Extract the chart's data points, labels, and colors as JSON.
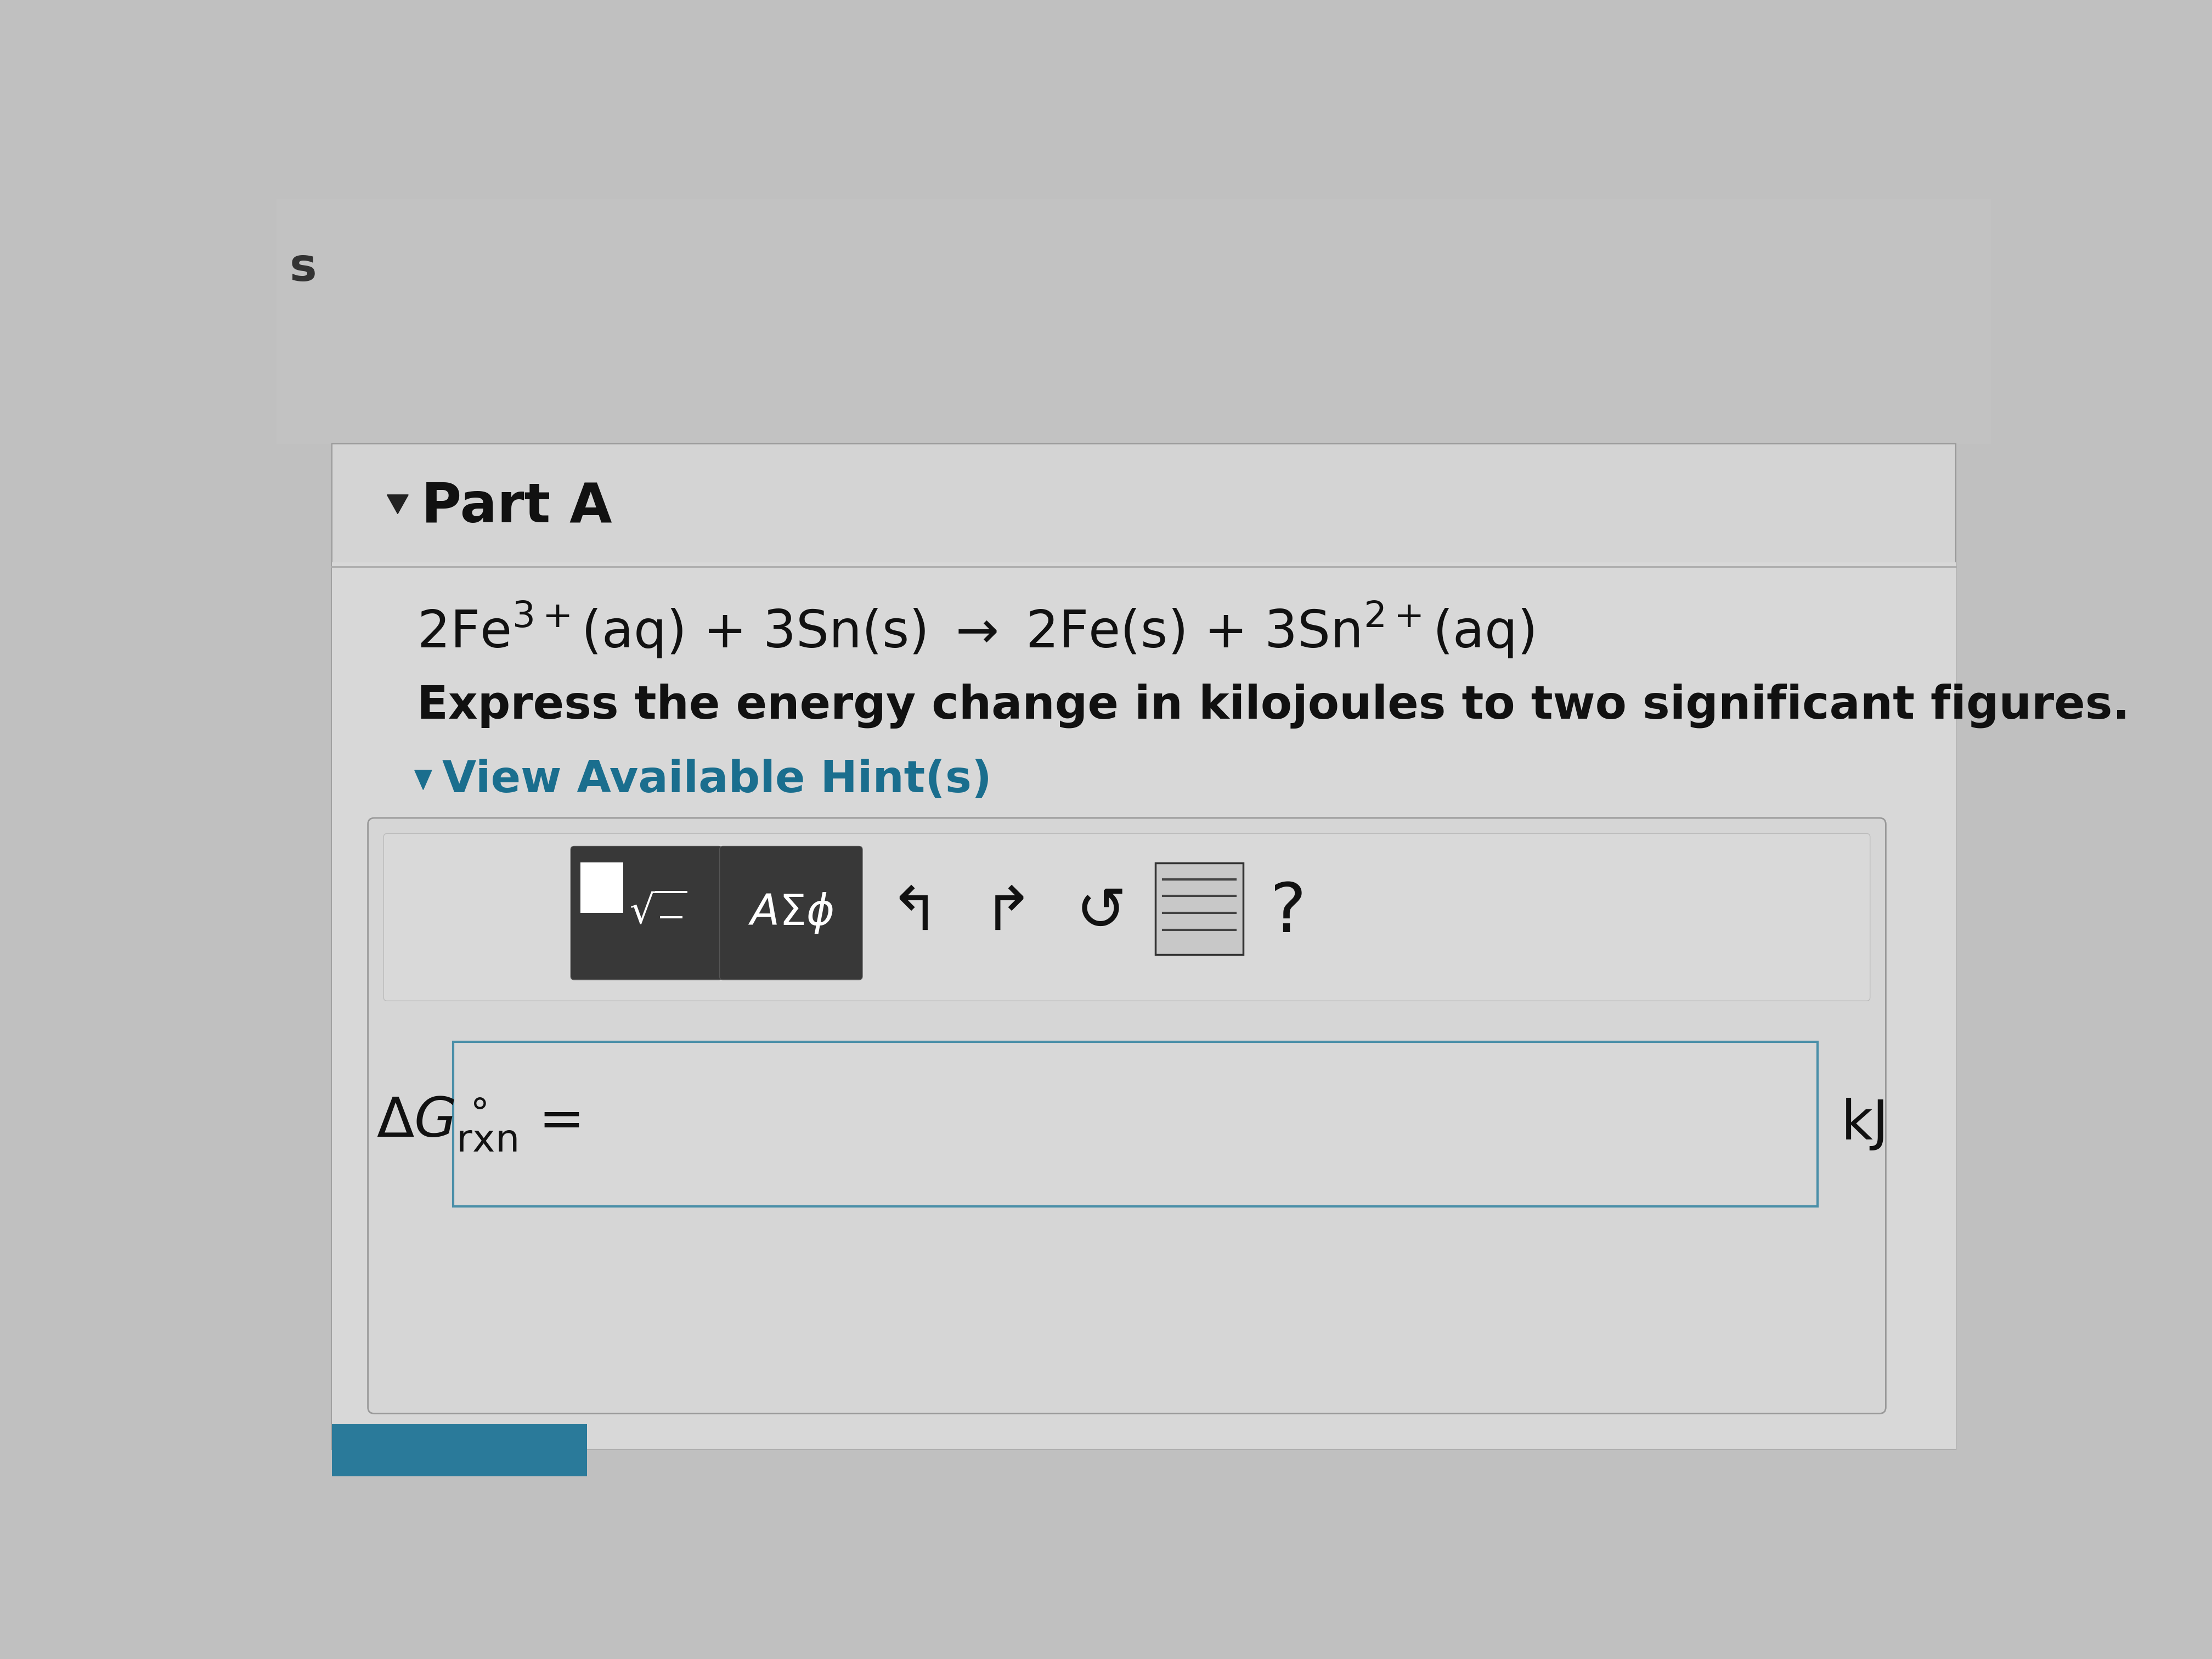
{
  "bg_top_color": "#c0c0c0",
  "bg_panel_color": "#d0d0d0",
  "bg_inner_color": "#cecece",
  "white_box_color": "#e8e8e8",
  "dark_btn_color": "#3a3a3a",
  "input_box_border": "#4a8fa8",
  "input_box_fill": "#e4e4e4",
  "outer_box_border": "#aaaaaa",
  "outer_box_fill": "#d8d8d8",
  "part_a_label": "Part A",
  "equation_text": "2Fe$^{3+}$(aq) + 3Sn(s) $\\rightarrow$ 2Fe(s) + 3Sn$^{2+}$(aq)",
  "instruction": "Express the energy change in kilojoules to two significant figures.",
  "hint_text": "View Available Hint(s)",
  "hint_color": "#1a6e8e",
  "delta_g_label": "$\\Delta G^\\circ_{\\mathrm{rxn}}$ =",
  "unit_label": "kJ",
  "s_letter": "s",
  "toolbar_text1": "$\\blacksquare\\sqrt{\\overline{\\;\\;}}$",
  "toolbar_text2": "$A\\Sigma\\phi$",
  "undo_char": "↰",
  "redo_char": "↱",
  "refresh_char": "↺",
  "question_char": "?"
}
